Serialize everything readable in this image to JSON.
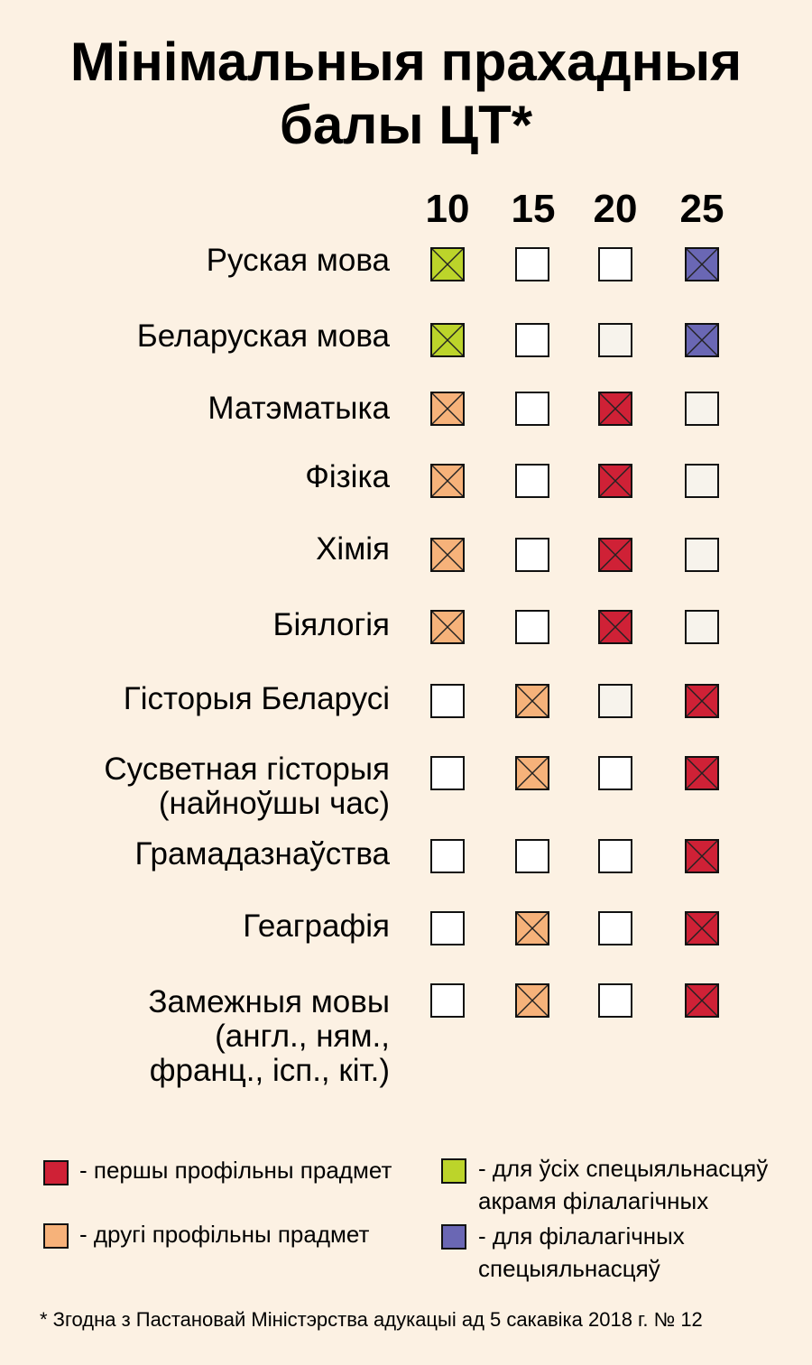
{
  "title_line1": "Мінімальныя прахадныя",
  "title_line2": "балы ЦТ*",
  "columns": [
    "10",
    "15",
    "20",
    "25"
  ],
  "colors": {
    "red": "#cf2136",
    "orange": "#f6b27a",
    "green": "#bcd42a",
    "blue": "#6a67b4",
    "white": "#ffffff",
    "offwhite": "#f7f3ec"
  },
  "rows": [
    {
      "label": "Руская мова",
      "cells": [
        "green",
        "white",
        "white",
        "blue"
      ]
    },
    {
      "label": "Беларуская мова",
      "cells": [
        "green",
        "white",
        "offwhite",
        "blue"
      ]
    },
    {
      "label": "Матэматыка",
      "cells": [
        "orange",
        "white",
        "red",
        "offwhite"
      ]
    },
    {
      "label": "Фізіка",
      "cells": [
        "orange",
        "white",
        "red",
        "offwhite"
      ]
    },
    {
      "label": "Хімія",
      "cells": [
        "orange",
        "white",
        "red",
        "offwhite"
      ]
    },
    {
      "label": "Біялогія",
      "cells": [
        "orange",
        "white",
        "red",
        "offwhite"
      ]
    },
    {
      "label": "Гісторыя Беларусі",
      "cells": [
        "white",
        "orange",
        "offwhite",
        "red"
      ]
    },
    {
      "label": "Сусветная гісторыя\n(найноўшы час)",
      "cells": [
        "white",
        "orange",
        "white",
        "red"
      ]
    },
    {
      "label": "Грамадазнаўства",
      "cells": [
        "white",
        "white",
        "white",
        "red"
      ]
    },
    {
      "label": "Геаграфія",
      "cells": [
        "white",
        "orange",
        "white",
        "red"
      ]
    },
    {
      "label": "Замежныя мовы\n(англ., ням.,\nфранц., ісп., кіт.)",
      "cells": [
        "white",
        "orange",
        "white",
        "red"
      ]
    }
  ],
  "legend": {
    "first_profile": "- першы профільны прадмет",
    "second_profile": "- другі профільны прадмет",
    "all_except_philology": "- для ўсіх спецыяльнасцяў\nакрамя філалагічных",
    "philology": "- для філалагічных\nспецыяльнасцяў"
  },
  "footnote": "* Згодна з Пастановай Міністэрства адукацыі ад 5 сакавіка 2018 г. № 12"
}
